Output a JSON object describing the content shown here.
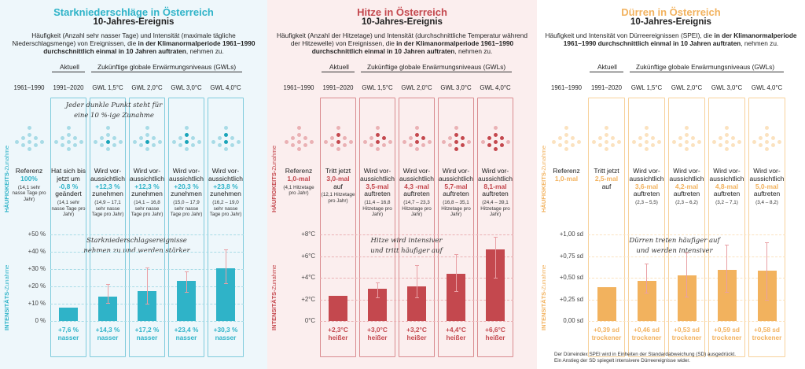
{
  "panels": [
    {
      "id": "rain",
      "title": "Starkniederschläge in Österreich",
      "subtitle": "10-Jahres-Ereignis",
      "desc_parts": [
        "Häufigkeit (Anzahl sehr nasser Tage) und Intensität (maximale tägliche Niederschlagsmenge) von Ereignissen, die ",
        "in der Klimanormalperiode 1961–1990 durchschnittlich einmal in 10 Jahren auftraten",
        ", nehmen zu."
      ],
      "header_aktuell": "Aktuell",
      "header_future": "Zukünftige globale Erwärmungsniveaus (GWLs)",
      "columns": [
        "1961–1990",
        "1991–2020",
        "GWL 1,5°C",
        "GWL 2,0°C",
        "GWL 3,0°C",
        "GWL 4,0°C"
      ],
      "dots_dark": [
        0,
        0,
        1,
        1,
        2,
        2
      ],
      "annotation_top": [
        "Jeder dunkle Punkt steht für",
        "eine 10 %-ige Zunahme"
      ],
      "freq": [
        {
          "line1": "Referenz",
          "value": "100%",
          "line3": "",
          "range": "(14,1 sehr nasse Tage pro Jahr)"
        },
        {
          "line1": "Hat sich bis jetzt um",
          "value": "-0,8 %",
          "line3": "geändert",
          "range": "(14,1 sehr nasse Tage pro Jahr)"
        },
        {
          "line1": "Wird vor-aussichtlich",
          "value": "+12,3 %",
          "line3": "zunehmen",
          "range": "(14,9 – 17,1 sehr nasse Tage pro Jahr)"
        },
        {
          "line1": "Wird vor-aussichtlich",
          "value": "+12,3 %",
          "line3": "zunehmen",
          "range": "(14,1 – 16,8 sehr nasse Tage pro Jahr)"
        },
        {
          "line1": "Wird vor-aussichtlich",
          "value": "+20,3 %",
          "line3": "zunehmen",
          "range": "(15,0 – 17,9 sehr nasse Tage pro Jahr)"
        },
        {
          "line1": "Wird vor-aussichtlich",
          "value": "+23,8 %",
          "line3": "zunehmen",
          "range": "(16,2 – 19,0 sehr nasse Tage pro Jahr)"
        }
      ],
      "side_freq": [
        "HÄUFIGKEITS-",
        "Zunahme"
      ],
      "side_int": [
        "INTENSITÄTS-",
        "Zunahme"
      ],
      "annotation_mid": [
        "Starkniederschlagsereignisse",
        "nehmen zu und werden stärker"
      ],
      "bar_labels": [
        {
          "v": "+7,6 %",
          "w": "nasser"
        },
        {
          "v": "+14,3 %",
          "w": "nasser"
        },
        {
          "v": "+17,2 %",
          "w": "nasser"
        },
        {
          "v": "+23,4 %",
          "w": "nasser"
        },
        {
          "v": "+30,3 %",
          "w": "nasser"
        }
      ],
      "footnote": [
        "",
        ""
      ],
      "colors": {
        "accent": "#2fb3c8",
        "dark": "#1aa4b9",
        "light": "#a8dbe6",
        "box": "#7fcbdc"
      }
    },
    {
      "id": "heat",
      "title": "Hitze in Österreich",
      "subtitle": "10-Jahres-Ereignis",
      "desc_parts": [
        "Häufigkeit (Anzahl der Hitzetage) und Intensität (durchschnittliche Temperatur während der Hitzewelle) von Ereignissen, die ",
        "in der Klimanormalperiode 1961–1990 durchschnittlich einmal in 10 Jahren auftraten",
        ", nehmen zu."
      ],
      "header_aktuell": "Aktuell",
      "header_future": "Zukünftige globale Erwärmungsniveaus (GWLs)",
      "columns": [
        "1961–1990",
        "1991–2020",
        "GWL 1,5°C",
        "GWL 2,0°C",
        "GWL 3,0°C",
        "GWL 4,0°C"
      ],
      "dots_dark": [
        0,
        2,
        3,
        3,
        5,
        7
      ],
      "annotation_top": [
        "",
        ""
      ],
      "freq": [
        {
          "line1": "Referenz",
          "value": "1,0-mal",
          "line3": "",
          "range": "(4,1 Hitzetage pro Jahr)"
        },
        {
          "line1": "Tritt jetzt",
          "value": "3,0-mal",
          "line3": "auf",
          "range": "(12,1 Hitzetage pro Jahr)"
        },
        {
          "line1": "Wird vor-aussichtlich",
          "value": "3,5-mal",
          "line3": "auftreten",
          "range": "(11,4 – 16,8 Hitzetage pro Jahr)"
        },
        {
          "line1": "Wird vor-aussichtlich",
          "value": "4,3 -mal",
          "line3": "auftreten",
          "range": "(14,7 – 23,3 Hitzetage pro Jahr)"
        },
        {
          "line1": "Wird vor-aussichtlich",
          "value": "5,7-mal",
          "line3": "auftreten",
          "range": "(16,8 – 35,1 Hitzetage pro Jahr)"
        },
        {
          "line1": "Wird vor-aussichtlich",
          "value": "8,1-mal",
          "line3": "auftreten",
          "range": "(24,4 – 39,1 Hitzetage pro Jahr)"
        }
      ],
      "side_freq": [
        "HÄUFIGKEITS-",
        "Zunahme"
      ],
      "side_int": [
        "INTENSITÄTS-",
        "Zunahme"
      ],
      "annotation_mid": [
        "Hitze wird intensiver",
        "und tritt häufiger auf"
      ],
      "bar_labels": [
        {
          "v": "+2,3°C",
          "w": "heißer"
        },
        {
          "v": "+3,0°C",
          "w": "heißer"
        },
        {
          "v": "+3,2°C",
          "w": "heißer"
        },
        {
          "v": "+4,4°C",
          "w": "heißer"
        },
        {
          "v": "+6,6°C",
          "w": "heißer"
        }
      ],
      "footnote": [
        "",
        ""
      ],
      "colors": {
        "accent": "#c4484e",
        "dark": "#c4484e",
        "light": "#eab1b4",
        "box": "#d98b8f"
      }
    },
    {
      "id": "drought",
      "title": "Dürren in Österreich",
      "subtitle": "10-Jahres-Ereignis",
      "desc_parts": [
        "Häufigkeit und Intensität von Dürreereignissen (SPEI), die ",
        "in der Klimanormalperiode 1961–1990 durchschnittlich einmal in 10 Jahren auftraten",
        ", nehmen zu."
      ],
      "header_aktuell": "Aktuell",
      "header_future": "Zukünftige globale Erwärmungsniveaus (GWLs)",
      "columns": [
        "1961–1990",
        "1991–2020",
        "GWL 1,5°C",
        "GWL 2,0°C",
        "GWL 3,0°C",
        "GWL 4,0°C"
      ],
      "dots_dark": [
        0,
        0,
        0,
        0,
        0,
        0
      ],
      "annotation_top": [
        "",
        ""
      ],
      "freq": [
        {
          "line1": "Referenz",
          "value": "1,0-mal",
          "line3": "",
          "range": ""
        },
        {
          "line1": "Tritt jetzt",
          "value": "2,5-mal",
          "line3": "auf",
          "range": ""
        },
        {
          "line1": "Wird vor-aussichtlich",
          "value": "3,6-mal",
          "line3": "auftreten",
          "range": "(2,3 – 5,5)"
        },
        {
          "line1": "Wird vor-aussichtlich",
          "value": "4,2-mal",
          "line3": "auftreten",
          "range": "(2,3 – 6,2)"
        },
        {
          "line1": "Wird vor-aussichtlich",
          "value": "4,8-mal",
          "line3": "auftreten",
          "range": "(3,2 – 7,1)"
        },
        {
          "line1": "Wird vor-aussichtlich",
          "value": "5,0-mal",
          "line3": "auftreten",
          "range": "(3,4 – 8,2)"
        }
      ],
      "side_freq": [
        "HÄUFIGKEITS-",
        "Zunahme"
      ],
      "side_int": [
        "INTENSITÄTS-",
        "Zunahme"
      ],
      "annotation_mid": [
        "Dürren treten häufiger auf",
        "und werden intensiver"
      ],
      "bar_labels": [
        {
          "v": "+0,39 sd",
          "w": "trockener"
        },
        {
          "v": "+0,46 sd",
          "w": "trockener"
        },
        {
          "v": "+0,53 sd",
          "w": "trockener"
        },
        {
          "v": "+0,59 sd",
          "w": "trockener"
        },
        {
          "v": "+0,58 sd",
          "w": "trockener"
        }
      ],
      "footnote": [
        "Der Dürreindex SPEI wird in Einheiten der Standardabweichung (SD) ausgedrückt.",
        "Ein Anstieg der SD spiegelt intensivere Dürreereignisse wider."
      ],
      "colors": {
        "accent": "#f2b25e",
        "dark": "#f2b25e",
        "light": "#fbe2bf",
        "box": "#f7d19b"
      }
    }
  ],
  "chart_data": [
    {
      "type": "bar",
      "categories": [
        "1991–2020",
        "GWL 1,5°C",
        "GWL 2,0°C",
        "GWL 3,0°C",
        "GWL 4,0°C"
      ],
      "values": [
        7.6,
        14.3,
        17.2,
        23.4,
        30.3
      ],
      "err_low": [
        7.6,
        10.5,
        10.0,
        17.0,
        22.0
      ],
      "err_high": [
        7.6,
        21.5,
        31.0,
        28.5,
        41.5
      ],
      "ylim": [
        0,
        50
      ],
      "yticks": [
        "0 %",
        "+10 %",
        "+20 %",
        "+30 %",
        "+40 %",
        "+50 %"
      ],
      "ytick_values": [
        0,
        10,
        20,
        30,
        40,
        50
      ],
      "ylabel": "INTENSITÄTS-Zunahme"
    },
    {
      "type": "bar",
      "categories": [
        "1991–2020",
        "GWL 1,5°C",
        "GWL 2,0°C",
        "GWL 3,0°C",
        "GWL 4,0°C"
      ],
      "values": [
        2.3,
        3.0,
        3.2,
        4.4,
        6.6
      ],
      "err_low": [
        2.3,
        2.2,
        2.2,
        2.8,
        4.0
      ],
      "err_high": [
        2.3,
        3.6,
        5.2,
        6.2,
        7.8
      ],
      "ylim": [
        0,
        8
      ],
      "yticks": [
        "0°C",
        "+2°C",
        "+4°C",
        "+6°C",
        "+8°C"
      ],
      "ytick_values": [
        0,
        2,
        4,
        6,
        8
      ],
      "ylabel": "INTENSITÄTS-Zunahme"
    },
    {
      "type": "bar",
      "categories": [
        "1991–2020",
        "GWL 1,5°C",
        "GWL 2,0°C",
        "GWL 3,0°C",
        "GWL 4,0°C"
      ],
      "values": [
        0.39,
        0.46,
        0.53,
        0.59,
        0.58
      ],
      "err_low": [
        0.39,
        0.33,
        0.28,
        0.34,
        0.25
      ],
      "err_high": [
        0.39,
        0.66,
        0.79,
        0.88,
        0.91
      ],
      "ylim": [
        0,
        1.0
      ],
      "yticks": [
        "0,00 sd",
        "+0,25 sd",
        "+0,50 sd",
        "+0,75 sd",
        "+1,00 sd"
      ],
      "ytick_values": [
        0,
        0.25,
        0.5,
        0.75,
        1.0
      ],
      "ylabel": "INTENSITÄTS-Zunahme"
    }
  ]
}
